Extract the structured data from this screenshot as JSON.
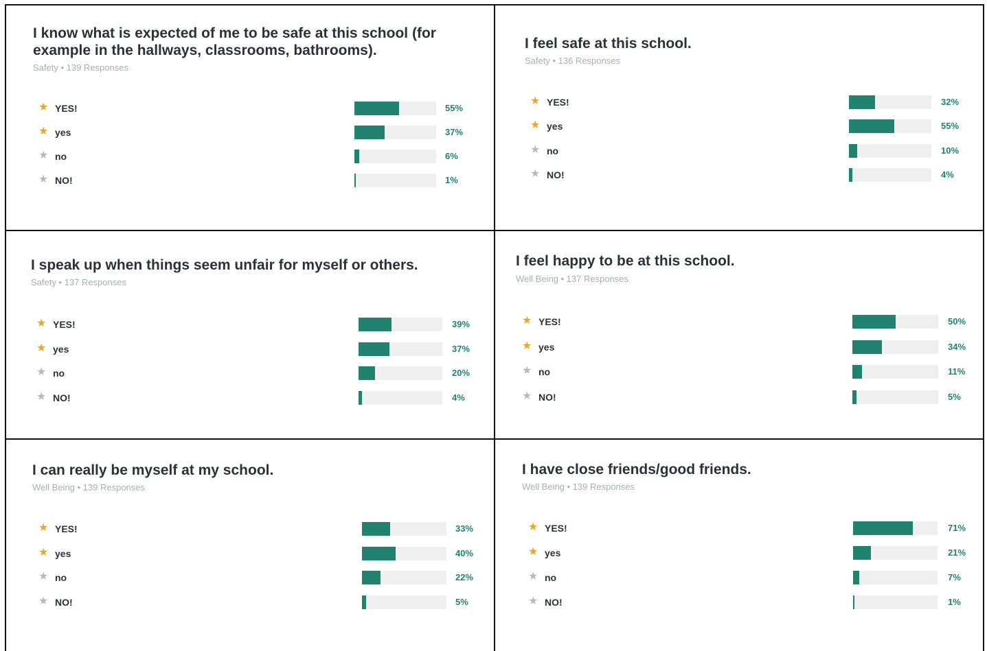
{
  "accent": "#21836f",
  "star_on_color": "#f0a520",
  "star_off_color": "#b6b9bb",
  "cards": [
    {
      "title": "I know what is expected of me to be safe at this school (for example in the hallways, classrooms, bathrooms).",
      "meta": "Safety • 139 Responses",
      "rows": [
        {
          "label": "YES!",
          "star": "star-filled-icon",
          "value": 55,
          "pct": "55%"
        },
        {
          "label": "yes",
          "star": "star-filled-icon",
          "value": 37,
          "pct": "37%"
        },
        {
          "label": "no",
          "star": "star-gray-icon",
          "value": 6,
          "pct": "6%"
        },
        {
          "label": "NO!",
          "star": "star-gray-icon",
          "value": 1,
          "pct": "1%"
        }
      ]
    },
    {
      "title": "I feel safe at this school.",
      "meta": "Safety • 136 Responses",
      "rows": [
        {
          "label": "YES!",
          "star": "star-filled-icon",
          "value": 32,
          "pct": "32%"
        },
        {
          "label": "yes",
          "star": "star-filled-icon",
          "value": 55,
          "pct": "55%"
        },
        {
          "label": "no",
          "star": "star-gray-icon",
          "value": 10,
          "pct": "10%"
        },
        {
          "label": "NO!",
          "star": "star-gray-icon",
          "value": 4,
          "pct": "4%"
        }
      ]
    },
    {
      "title": "I speak up when things seem unfair for myself or others.",
      "meta": "Safety • 137 Responses",
      "rows": [
        {
          "label": "YES!",
          "star": "star-filled-icon",
          "value": 39,
          "pct": "39%"
        },
        {
          "label": "yes",
          "star": "star-filled-icon",
          "value": 37,
          "pct": "37%"
        },
        {
          "label": "no",
          "star": "star-gray-icon",
          "value": 20,
          "pct": "20%"
        },
        {
          "label": "NO!",
          "star": "star-gray-icon",
          "value": 4,
          "pct": "4%"
        }
      ]
    },
    {
      "title": "I feel happy to be at this school.",
      "meta": "Well Being • 137 Responses",
      "rows": [
        {
          "label": "YES!",
          "star": "star-filled-icon",
          "value": 50,
          "pct": "50%"
        },
        {
          "label": "yes",
          "star": "star-filled-icon",
          "value": 34,
          "pct": "34%"
        },
        {
          "label": "no",
          "star": "star-gray-icon",
          "value": 11,
          "pct": "11%"
        },
        {
          "label": "NO!",
          "star": "star-gray-icon",
          "value": 5,
          "pct": "5%"
        }
      ]
    },
    {
      "title": "I can really be myself at my school.",
      "meta": "Well Being • 139 Responses",
      "rows": [
        {
          "label": "YES!",
          "star": "star-filled-icon",
          "value": 33,
          "pct": "33%"
        },
        {
          "label": "yes",
          "star": "star-filled-icon",
          "value": 40,
          "pct": "40%"
        },
        {
          "label": "no",
          "star": "star-gray-icon",
          "value": 22,
          "pct": "22%"
        },
        {
          "label": "NO!",
          "star": "star-gray-icon",
          "value": 5,
          "pct": "5%"
        }
      ]
    },
    {
      "title": "I have close friends/good friends.",
      "meta": "Well Being • 139 Responses",
      "rows": [
        {
          "label": "YES!",
          "star": "star-filled-icon",
          "value": 71,
          "pct": "71%"
        },
        {
          "label": "yes",
          "star": "star-filled-icon",
          "value": 21,
          "pct": "21%"
        },
        {
          "label": "no",
          "star": "star-gray-icon",
          "value": 7,
          "pct": "7%"
        },
        {
          "label": "NO!",
          "star": "star-gray-icon",
          "value": 1,
          "pct": "1%"
        }
      ]
    }
  ],
  "chart_data": [
    {
      "type": "bar",
      "title": "I know what is expected of me to be safe at this school (for example in the hallways, classrooms, bathrooms).",
      "categories": [
        "YES!",
        "yes",
        "no",
        "NO!"
      ],
      "values": [
        55,
        37,
        6,
        1
      ],
      "xlim": [
        0,
        100
      ]
    },
    {
      "type": "bar",
      "title": "I feel safe at this school.",
      "categories": [
        "YES!",
        "yes",
        "no",
        "NO!"
      ],
      "values": [
        32,
        55,
        10,
        4
      ],
      "xlim": [
        0,
        100
      ]
    },
    {
      "type": "bar",
      "title": "I speak up when things seem unfair for myself or others.",
      "categories": [
        "YES!",
        "yes",
        "no",
        "NO!"
      ],
      "values": [
        39,
        37,
        20,
        4
      ],
      "xlim": [
        0,
        100
      ]
    },
    {
      "type": "bar",
      "title": "I feel happy to be at this school.",
      "categories": [
        "YES!",
        "yes",
        "no",
        "NO!"
      ],
      "values": [
        50,
        34,
        11,
        5
      ],
      "xlim": [
        0,
        100
      ]
    },
    {
      "type": "bar",
      "title": "I can really be myself at my school.",
      "categories": [
        "YES!",
        "yes",
        "no",
        "NO!"
      ],
      "values": [
        33,
        40,
        22,
        5
      ],
      "xlim": [
        0,
        100
      ]
    },
    {
      "type": "bar",
      "title": "I have close friends/good friends.",
      "categories": [
        "YES!",
        "yes",
        "no",
        "NO!"
      ],
      "values": [
        71,
        21,
        7,
        1
      ],
      "xlim": [
        0,
        100
      ]
    }
  ]
}
